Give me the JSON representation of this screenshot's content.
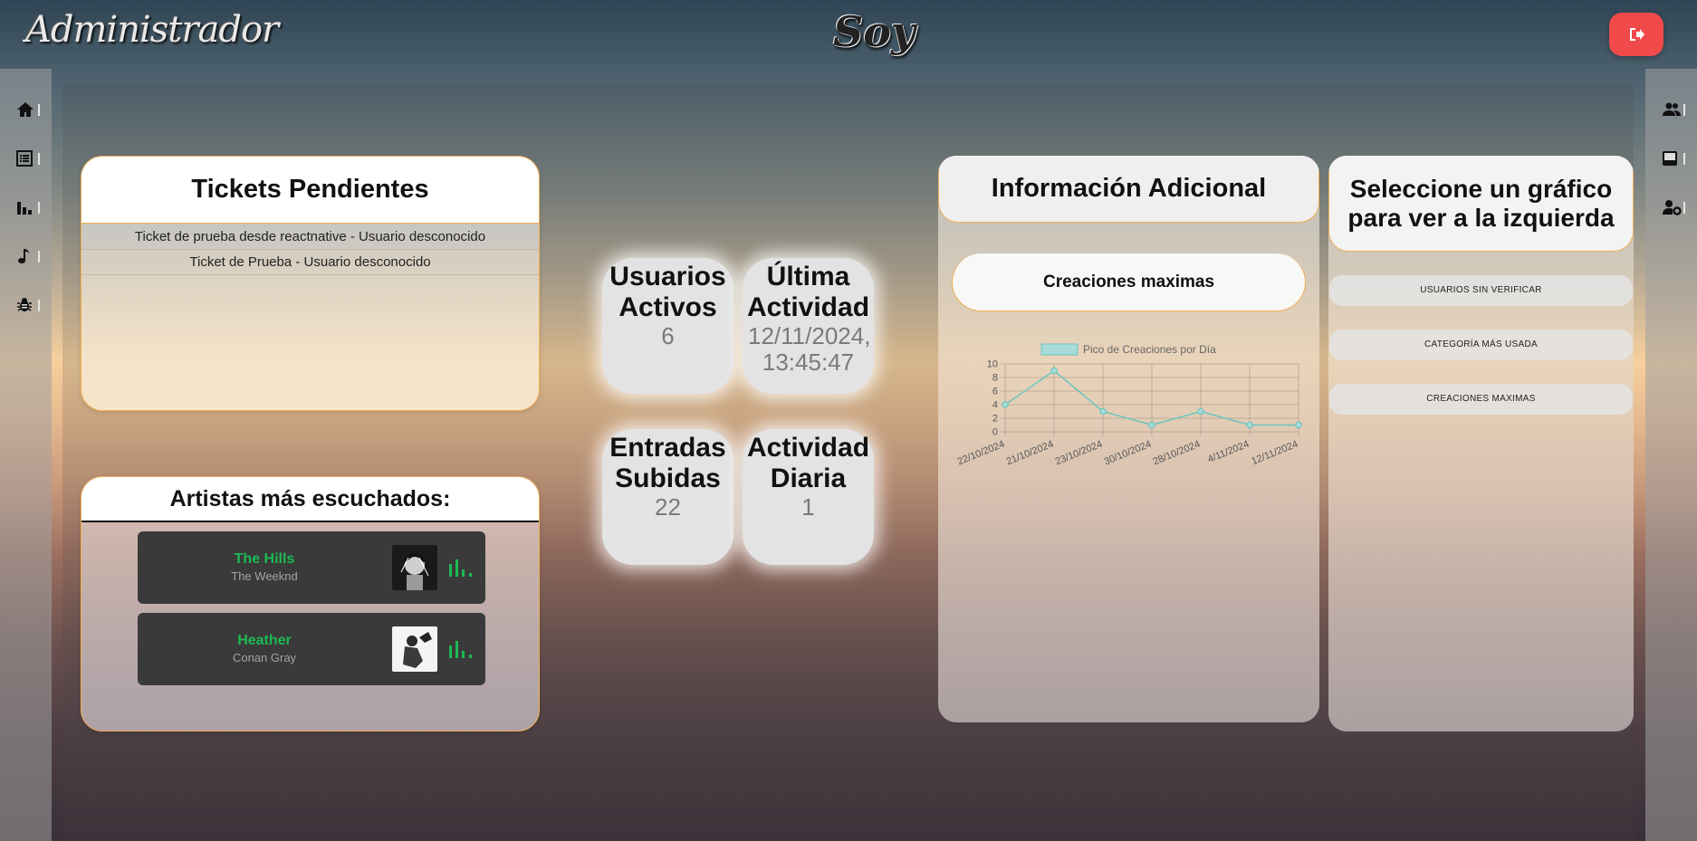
{
  "header": {
    "brand_left": "Administrador",
    "brand_center": "Soy",
    "logout_icon": "logout-icon",
    "accent_color": "#f14a4a"
  },
  "sidebar_left": {
    "items": [
      {
        "icon": "home-icon"
      },
      {
        "icon": "list-icon"
      },
      {
        "icon": "bar-chart-icon"
      },
      {
        "icon": "music-note-icon"
      },
      {
        "icon": "bug-icon"
      }
    ]
  },
  "sidebar_right": {
    "items": [
      {
        "icon": "users-icon"
      },
      {
        "icon": "inbox-icon"
      },
      {
        "icon": "user-settings-icon"
      }
    ]
  },
  "tickets": {
    "title": "Tickets Pendientes",
    "items": [
      "Ticket de prueba desde reactnative - Usuario desconocido",
      "Ticket de Prueba - Usuario desconocido"
    ]
  },
  "artists": {
    "title": "Artistas más escuchados:",
    "songs": [
      {
        "title": "The Hills",
        "artist": "The Weeknd"
      },
      {
        "title": "Heather",
        "artist": "Conan Gray"
      }
    ],
    "accent_color": "#1db954"
  },
  "stats": [
    {
      "title": "Usuarios Activos",
      "value": "6"
    },
    {
      "title": "Última Actividad",
      "value": "12/11/2024, 13:45:47"
    },
    {
      "title": "Entradas Subidas",
      "value": "22"
    },
    {
      "title": "Actividad Diaria",
      "value": "1"
    }
  ],
  "info": {
    "title": "Información Adicional",
    "chart_title": "Creaciones maximas"
  },
  "chart_data": {
    "type": "line",
    "categories": [
      "22/10/2024",
      "21/10/2024",
      "23/10/2024",
      "30/10/2024",
      "28/10/2024",
      "4/11/2024",
      "12/11/2024"
    ],
    "series": [
      {
        "name": "Pico de Creaciones por Día",
        "values": [
          4,
          9,
          3,
          1,
          3,
          1,
          1
        ]
      }
    ],
    "ylim": [
      0,
      10
    ],
    "yticks": [
      0,
      2,
      4,
      6,
      8,
      10
    ],
    "grid": true,
    "legend": "top",
    "color": "#6cc4c0"
  },
  "selector": {
    "title": "Seleccione un gráfico para ver a la izquierda",
    "options": [
      "USUARIOS SIN VERIFICAR",
      "CATEGORÍA MÁS USADA",
      "CREACIONES MAXIMAS"
    ]
  }
}
